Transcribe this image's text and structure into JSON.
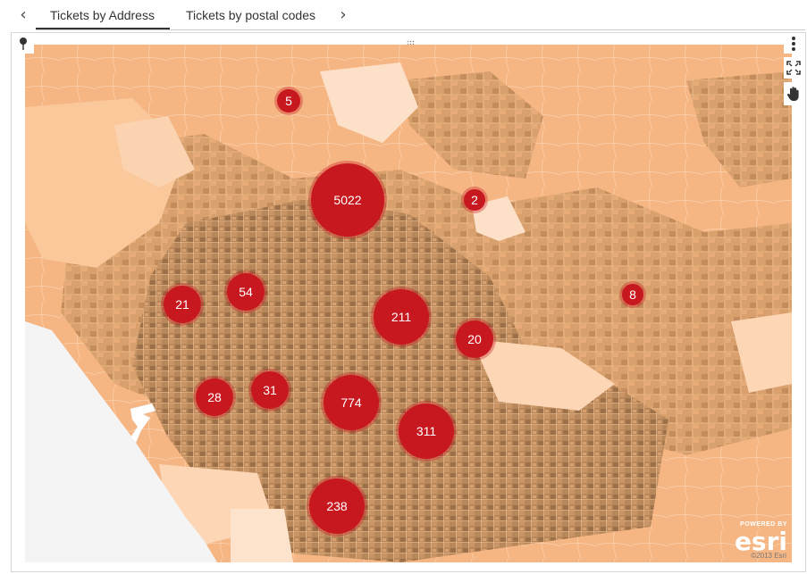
{
  "tabs": {
    "prev_arrow": "‹",
    "next_arrow": "›",
    "items": [
      {
        "label": "Tickets by Address",
        "active": true
      },
      {
        "label": "Tickets by postal codes",
        "active": false
      }
    ]
  },
  "map": {
    "attribution": "©2013 Esri",
    "logo_powered": "POWERED BY",
    "logo_name": "esri",
    "clusters": [
      {
        "count": "5"
      },
      {
        "count": "5022"
      },
      {
        "count": "2"
      },
      {
        "count": "54"
      },
      {
        "count": "21"
      },
      {
        "count": "211"
      },
      {
        "count": "8"
      },
      {
        "count": "20"
      },
      {
        "count": "28"
      },
      {
        "count": "31"
      },
      {
        "count": "774"
      },
      {
        "count": "311"
      },
      {
        "count": "238"
      }
    ]
  },
  "icons": {
    "pin": "map-pin-icon",
    "more": "more-vertical-icon",
    "fullscreen": "fullscreen-icon",
    "pan": "pan-hand-icon"
  },
  "colors": {
    "cluster": "#c8181f",
    "map_base": "#f7b783",
    "map_dark": "#a87a50",
    "map_light": "#fbd9bd",
    "water": "#f4f4f4"
  }
}
